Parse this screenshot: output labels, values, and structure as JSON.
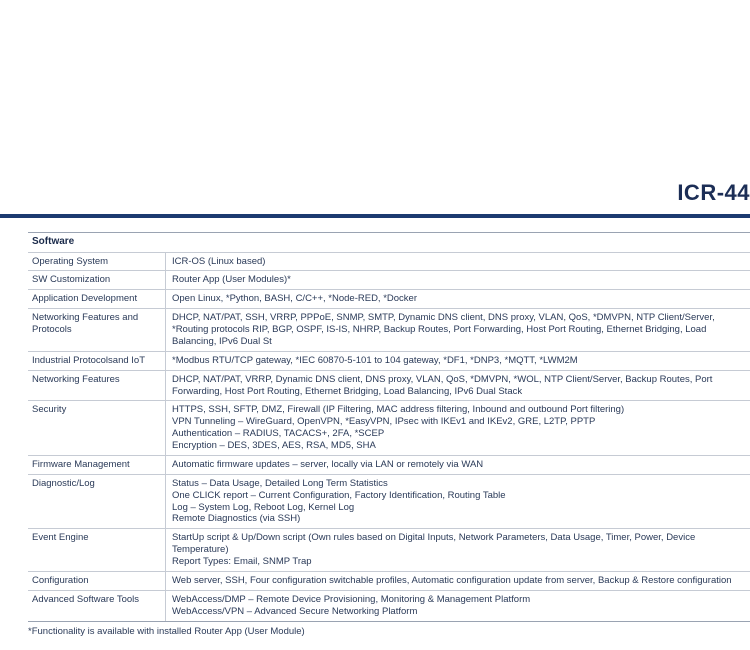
{
  "header": {
    "title": "ICR-44"
  },
  "table": {
    "section_title": "Software",
    "rows": [
      {
        "label": "Operating System",
        "value": "ICR-OS (Linux based)"
      },
      {
        "label": "SW Customization",
        "value": "Router App (User Modules)*"
      },
      {
        "label": "Application Development",
        "value": "Open Linux, *Python, BASH, C/C++, *Node-RED, *Docker"
      },
      {
        "label": "Networking Features and Protocols",
        "value": "DHCP, NAT/PAT, SSH, VRRP, PPPoE, SNMP, SMTP, Dynamic DNS client, DNS proxy, VLAN, QoS, *DMVPN, NTP Client/Server, *Routing protocols RIP, BGP, OSPF, IS-IS, NHRP, Backup Routes, Port Forwarding, Host Port Routing, Ethernet Bridging, Load Balancing, IPv6 Dual St"
      },
      {
        "label": "Industrial Protocolsand IoT",
        "value": "*Modbus RTU/TCP gateway, *IEC 60870-5-101 to 104 gateway, *DF1, *DNP3, *MQTT, *LWM2M"
      },
      {
        "label": "Networking Features",
        "value": "DHCP, NAT/PAT, VRRP, Dynamic DNS client, DNS proxy, VLAN, QoS, *DMVPN, *WOL, NTP Client/Server, Backup Routes, Port Forwarding, Host Port Routing, Ethernet Bridging, Load Balancing, IPv6 Dual Stack"
      },
      {
        "label": "Security",
        "value": "HTTPS, SSH, SFTP, DMZ, Firewall (IP Filtering, MAC address filtering, Inbound and outbound Port filtering)\nVPN Tunneling – WireGuard, OpenVPN, *EasyVPN, IPsec with IKEv1 and IKEv2, GRE, L2TP, PPTP\nAuthentication – RADIUS, TACACS+, 2FA, *SCEP\nEncryption – DES, 3DES, AES, RSA, MD5, SHA"
      },
      {
        "label": "Firmware Management",
        "value": "Automatic firmware updates – server, locally via LAN or remotely via WAN"
      },
      {
        "label": "Diagnostic/Log",
        "value": "Status – Data Usage, Detailed Long Term Statistics\nOne CLICK report – Current Configuration, Factory Identification, Routing Table\nLog – System Log, Reboot Log, Kernel Log\nRemote Diagnostics (via SSH)"
      },
      {
        "label": "Event Engine",
        "value": "StartUp script & Up/Down script (Own rules based on Digital Inputs, Network Parameters, Data Usage, Timer, Power, Device Temperature)\nReport Types: Email, SNMP Trap"
      },
      {
        "label": "Configuration",
        "value": "Web server, SSH, Four configuration switchable profiles, Automatic configuration update from server, Backup & Restore configuration"
      },
      {
        "label": "Advanced Software Tools",
        "value": "WebAccess/DMP – Remote Device Provisioning, Monitoring & Management Platform\nWebAccess/VPN – Advanced Secure Networking Platform"
      }
    ]
  },
  "footnote": "*Functionality is available with installed Router App (User Module)"
}
